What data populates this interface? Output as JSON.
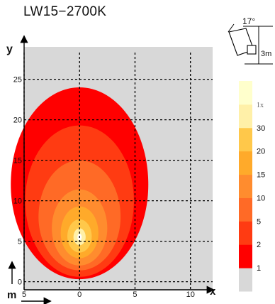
{
  "title": "LW15−2700K",
  "chart_data": {
    "type": "heatmap",
    "description_free": true,
    "xlabel": "x",
    "ylabel": "y",
    "x_unit_label": "m",
    "xlim": [
      -5,
      12
    ],
    "ylim": [
      -1,
      29
    ],
    "x_ticks": [
      {
        "value": -5,
        "label": "5"
      },
      {
        "value": 0,
        "label": "0"
      },
      {
        "value": 5,
        "label": "5"
      },
      {
        "value": 10,
        "label": "10"
      }
    ],
    "y_ticks": [
      {
        "value": 0,
        "label": "0"
      },
      {
        "value": 5,
        "label": "5"
      },
      {
        "value": 10,
        "label": "10"
      },
      {
        "value": 15,
        "label": "15"
      },
      {
        "value": 20,
        "label": "20"
      },
      {
        "value": 25,
        "label": "25"
      }
    ],
    "grid": true,
    "legend_position": "right",
    "fixture": {
      "tilt_label": "17°",
      "height_label": "3m"
    },
    "levels": [
      {
        "label": "1",
        "color": "#d8d8d8"
      },
      {
        "label": "2",
        "color": "#ff0000"
      },
      {
        "label": "5",
        "color": "#ff3b12"
      },
      {
        "label": "10",
        "color": "#ff6a26"
      },
      {
        "label": "15",
        "color": "#ff8c2e"
      },
      {
        "label": "20",
        "color": "#ffaa2a"
      },
      {
        "label": "30",
        "color": "#ffc84a"
      },
      {
        "label": "1x",
        "color": "#fff0a8"
      },
      {
        "label": "",
        "color": "#ffffcc"
      }
    ],
    "isolux_contours": [
      {
        "level": "2",
        "cx": 0,
        "cy": 12,
        "rx": 6.2,
        "ry_top": 12.0,
        "ry_bottom": 11.7,
        "color": "#ff0000"
      },
      {
        "level": "5",
        "cx": 0,
        "cy": 10,
        "rx": 4.9,
        "ry_top": 9.3,
        "ry_bottom": 9.4,
        "color": "#ff3b12"
      },
      {
        "level": "10",
        "cx": 0,
        "cy": 8,
        "rx": 3.7,
        "ry_top": 7.0,
        "ry_bottom": 6.6,
        "color": "#ff6a26"
      },
      {
        "level": "15",
        "cx": 0,
        "cy": 6.6,
        "rx": 2.5,
        "ry_top": 4.8,
        "ry_bottom": 4.6,
        "color": "#ff8c2e"
      },
      {
        "level": "20",
        "cx": 0,
        "cy": 6,
        "rx": 1.7,
        "ry_top": 3.3,
        "ry_bottom": 3.1,
        "color": "#ffaa2a"
      },
      {
        "level": "30",
        "cx": 0,
        "cy": 5.6,
        "rx": 1.1,
        "ry_top": 2.1,
        "ry_bottom": 2.0,
        "color": "#ffc84a"
      },
      {
        "level": "1x",
        "cx": 0,
        "cy": 5.5,
        "rx": 0.55,
        "ry_top": 1.1,
        "ry_bottom": 1.0,
        "color": "#fff0a8"
      }
    ]
  }
}
